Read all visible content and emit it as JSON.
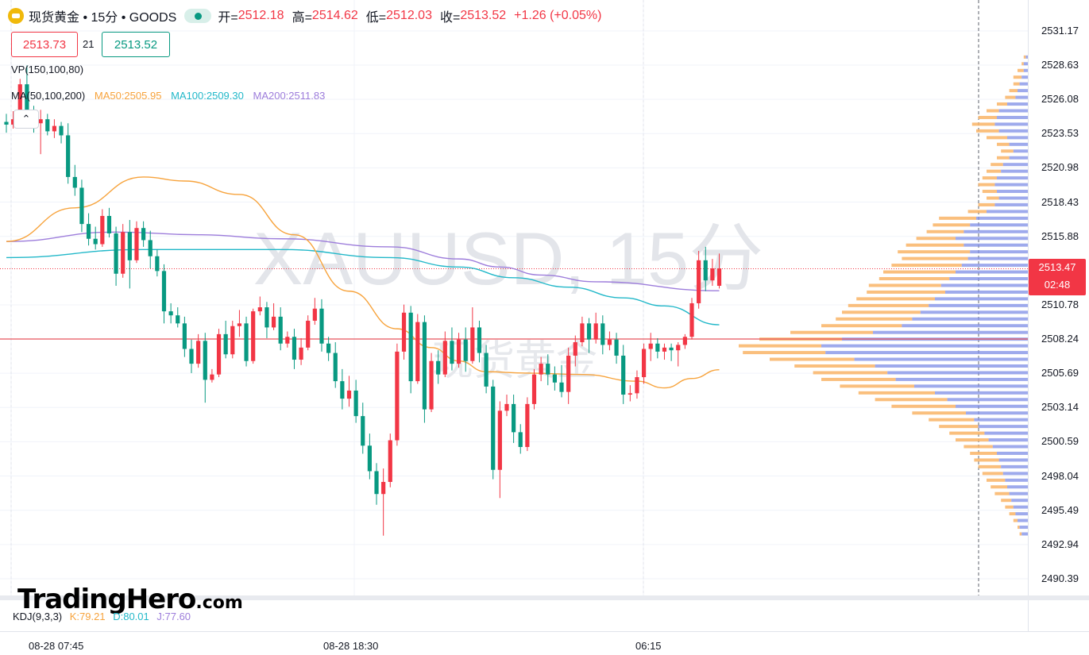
{
  "header": {
    "symbol_text": "现货黄金 • 15分 • GOODS",
    "open_key": "开=",
    "open_val": "2512.18",
    "high_key": "高=",
    "high_val": "2514.62",
    "low_key": "低=",
    "low_val": "2512.03",
    "close_key": "收=",
    "close_val": "2513.52",
    "change": "+1.26 (+0.05%)"
  },
  "quote": {
    "ask": "2513.73",
    "spread": "21",
    "bid": "2513.52"
  },
  "indicators": {
    "vp_label": "VP(150,100,80)",
    "ma_label": "MA(50,100,200)",
    "ma50": "MA50:2505.95",
    "ma100": "MA100:2509.30",
    "ma200": "MA200:2511.83",
    "collapse_glyph": "⌃"
  },
  "kdj": {
    "label": "KDJ(9,3,3)",
    "k": "K:79.21",
    "d": "D:80.01",
    "j": "J:77.60"
  },
  "watermark": {
    "line1": "XAUUSD, 15分",
    "line2": "现货黄金"
  },
  "brand": {
    "name": "TradingHero",
    "suffix": ".com"
  },
  "price_axis": {
    "ticks": [
      "2531.17",
      "2528.63",
      "2526.08",
      "2523.53",
      "2520.98",
      "2518.43",
      "2515.88",
      "2510.78",
      "2508.24",
      "2505.69",
      "2503.14",
      "2500.59",
      "2498.04",
      "2495.49",
      "2492.94",
      "2490.39"
    ],
    "last_price": "2513.47",
    "countdown": "02:48"
  },
  "time_axis": {
    "ticks": [
      "08-28 07:45",
      "08-28 18:30",
      "06:15"
    ]
  },
  "colors": {
    "up": "#f23645",
    "down": "#089981",
    "ma50": "#f7a33c",
    "ma100": "#22b8c9",
    "ma200": "#9d7ddb",
    "vp_up": "#f9b466",
    "vp_down": "#7e8ee6"
  },
  "chart_data": {
    "type": "candlestick",
    "timeframe": "15分",
    "symbol": "XAUUSD",
    "y_range": [
      2489.0,
      2533.0
    ],
    "horizontal_line": 2508.24,
    "candles": [
      [
        2524.4,
        2525.0,
        2523.6,
        2524.2
      ],
      [
        2524.2,
        2525.2,
        2523.9,
        2524.6
      ],
      [
        2524.6,
        2527.6,
        2524.4,
        2527.2
      ],
      [
        2527.2,
        2528.6,
        2524.0,
        2524.9
      ],
      [
        2524.9,
        2525.6,
        2523.6,
        2524.3
      ],
      [
        2524.3,
        2525.3,
        2522.0,
        2524.6
      ],
      [
        2524.6,
        2525.0,
        2523.4,
        2523.7
      ],
      [
        2523.7,
        2524.6,
        2523.2,
        2524.1
      ],
      [
        2524.1,
        2524.4,
        2522.8,
        2523.4
      ],
      [
        2523.4,
        2524.3,
        2519.8,
        2520.3
      ],
      [
        2520.3,
        2521.2,
        2518.9,
        2519.5
      ],
      [
        2519.5,
        2520.1,
        2516.2,
        2516.8
      ],
      [
        2516.8,
        2517.6,
        2515.2,
        2515.7
      ],
      [
        2515.7,
        2516.6,
        2514.9,
        2515.3
      ],
      [
        2515.3,
        2517.9,
        2515.1,
        2517.4
      ],
      [
        2517.4,
        2518.0,
        2515.8,
        2516.1
      ],
      [
        2516.1,
        2516.6,
        2512.2,
        2513.1
      ],
      [
        2513.1,
        2516.8,
        2512.8,
        2516.2
      ],
      [
        2516.2,
        2517.1,
        2512.0,
        2514.1
      ],
      [
        2514.1,
        2517.0,
        2513.9,
        2516.5
      ],
      [
        2516.5,
        2517.0,
        2515.1,
        2515.6
      ],
      [
        2515.6,
        2516.3,
        2513.5,
        2514.4
      ],
      [
        2514.4,
        2514.9,
        2512.9,
        2513.3
      ],
      [
        2513.3,
        2513.8,
        2509.4,
        2510.3
      ],
      [
        2510.3,
        2510.9,
        2509.4,
        2510.0
      ],
      [
        2510.0,
        2510.6,
        2509.1,
        2509.4
      ],
      [
        2509.4,
        2509.9,
        2506.9,
        2507.5
      ],
      [
        2507.5,
        2508.2,
        2505.7,
        2506.4
      ],
      [
        2506.4,
        2508.6,
        2506.1,
        2508.1
      ],
      [
        2508.1,
        2508.7,
        2503.5,
        2505.2
      ],
      [
        2505.2,
        2506.0,
        2505.0,
        2505.6
      ],
      [
        2505.6,
        2509.0,
        2505.4,
        2508.6
      ],
      [
        2508.6,
        2509.6,
        2506.8,
        2507.1
      ],
      [
        2507.1,
        2509.6,
        2506.8,
        2509.2
      ],
      [
        2509.2,
        2510.4,
        2508.4,
        2509.4
      ],
      [
        2509.4,
        2509.9,
        2506.2,
        2506.6
      ],
      [
        2506.6,
        2510.5,
        2506.4,
        2510.3
      ],
      [
        2510.3,
        2511.4,
        2510.0,
        2510.6
      ],
      [
        2510.6,
        2511.0,
        2508.3,
        2509.1
      ],
      [
        2509.1,
        2510.9,
        2508.9,
        2509.9
      ],
      [
        2509.9,
        2510.6,
        2507.4,
        2507.9
      ],
      [
        2507.9,
        2508.8,
        2507.6,
        2508.4
      ],
      [
        2508.4,
        2509.0,
        2506.0,
        2506.7
      ],
      [
        2506.7,
        2508.3,
        2506.3,
        2507.6
      ],
      [
        2507.6,
        2510.0,
        2507.4,
        2509.6
      ],
      [
        2509.6,
        2511.3,
        2509.3,
        2510.5
      ],
      [
        2510.5,
        2511.2,
        2507.3,
        2507.9
      ],
      [
        2507.9,
        2508.4,
        2506.6,
        2507.2
      ],
      [
        2507.2,
        2508.0,
        2504.6,
        2505.1
      ],
      [
        2505.1,
        2506.0,
        2503.0,
        2503.8
      ],
      [
        2503.8,
        2505.5,
        2503.2,
        2504.4
      ],
      [
        2504.4,
        2505.2,
        2502.0,
        2502.5
      ],
      [
        2502.5,
        2503.5,
        2499.7,
        2500.3
      ],
      [
        2500.3,
        2501.2,
        2497.8,
        2498.4
      ],
      [
        2498.4,
        2499.0,
        2495.9,
        2496.7
      ],
      [
        2496.7,
        2498.6,
        2493.6,
        2497.6
      ],
      [
        2497.6,
        2501.2,
        2497.2,
        2500.7
      ],
      [
        2500.7,
        2507.9,
        2500.3,
        2507.3
      ],
      [
        2507.3,
        2510.8,
        2506.7,
        2510.2
      ],
      [
        2510.2,
        2510.7,
        2504.2,
        2505.1
      ],
      [
        2505.1,
        2510.1,
        2504.9,
        2509.5
      ],
      [
        2509.5,
        2510.0,
        2502.0,
        2503.0
      ],
      [
        2503.0,
        2507.2,
        2502.8,
        2506.6
      ],
      [
        2506.6,
        2507.4,
        2504.9,
        2505.6
      ],
      [
        2505.6,
        2508.8,
        2505.4,
        2508.1
      ],
      [
        2508.1,
        2509.1,
        2505.9,
        2506.4
      ],
      [
        2506.4,
        2508.7,
        2506.1,
        2508.2
      ],
      [
        2508.2,
        2509.1,
        2505.8,
        2506.6
      ],
      [
        2506.6,
        2510.6,
        2506.4,
        2509.1
      ],
      [
        2509.1,
        2509.6,
        2506.5,
        2507.2
      ],
      [
        2507.2,
        2507.8,
        2504.2,
        2504.7
      ],
      [
        2504.7,
        2505.2,
        2497.8,
        2498.5
      ],
      [
        2498.5,
        2503.6,
        2496.4,
        2502.9
      ],
      [
        2502.9,
        2504.1,
        2502.5,
        2503.4
      ],
      [
        2503.4,
        2504.1,
        2500.5,
        2501.3
      ],
      [
        2501.3,
        2501.9,
        2499.7,
        2500.2
      ],
      [
        2500.2,
        2503.9,
        2499.9,
        2503.4
      ],
      [
        2503.4,
        2506.0,
        2503.0,
        2505.6
      ],
      [
        2505.6,
        2506.9,
        2505.1,
        2506.4
      ],
      [
        2506.4,
        2507.1,
        2504.8,
        2505.6
      ],
      [
        2505.6,
        2506.2,
        2504.4,
        2505.0
      ],
      [
        2505.0,
        2506.3,
        2503.9,
        2504.3
      ],
      [
        2504.3,
        2507.6,
        2503.4,
        2507.0
      ],
      [
        2507.0,
        2508.5,
        2506.2,
        2508.0
      ],
      [
        2508.0,
        2509.9,
        2507.7,
        2509.4
      ],
      [
        2509.4,
        2509.8,
        2507.2,
        2508.2
      ],
      [
        2508.2,
        2510.2,
        2507.9,
        2509.4
      ],
      [
        2509.4,
        2510.0,
        2507.1,
        2507.8
      ],
      [
        2507.8,
        2508.8,
        2507.4,
        2508.2
      ],
      [
        2508.2,
        2508.7,
        2506.4,
        2507.0
      ],
      [
        2507.0,
        2507.8,
        2503.4,
        2504.1
      ],
      [
        2504.1,
        2504.8,
        2503.6,
        2504.2
      ],
      [
        2504.2,
        2505.9,
        2503.8,
        2505.4
      ],
      [
        2505.4,
        2507.9,
        2504.9,
        2507.5
      ],
      [
        2507.5,
        2508.7,
        2506.6,
        2507.9
      ],
      [
        2507.9,
        2508.3,
        2506.8,
        2507.3
      ],
      [
        2507.3,
        2507.9,
        2506.7,
        2507.6
      ],
      [
        2507.6,
        2507.9,
        2506.6,
        2507.4
      ],
      [
        2507.4,
        2508.0,
        2506.2,
        2507.8
      ],
      [
        2507.8,
        2508.6,
        2507.5,
        2508.4
      ],
      [
        2508.4,
        2511.3,
        2508.2,
        2510.9
      ],
      [
        2510.9,
        2514.8,
        2510.5,
        2514.1
      ],
      [
        2514.1,
        2515.1,
        2511.8,
        2512.6
      ],
      [
        2512.6,
        2514.2,
        2512.2,
        2513.5
      ],
      [
        2512.2,
        2514.6,
        2512.0,
        2513.5
      ]
    ],
    "ma50": [
      [
        0,
        2515.5
      ],
      [
        10,
        2518.0
      ],
      [
        20,
        2520.3
      ],
      [
        26,
        2520.0
      ],
      [
        34,
        2519.0
      ],
      [
        42,
        2516.0
      ],
      [
        50,
        2511.8
      ],
      [
        57,
        2509.0
      ],
      [
        62,
        2507.6
      ],
      [
        66,
        2506.6
      ],
      [
        70,
        2505.8
      ],
      [
        76,
        2505.7
      ],
      [
        84,
        2505.6
      ],
      [
        92,
        2505.1
      ],
      [
        96,
        2504.6
      ],
      [
        100,
        2505.3
      ],
      [
        104,
        2505.95
      ]
    ],
    "ma100": [
      [
        0,
        2514.3
      ],
      [
        20,
        2514.9
      ],
      [
        40,
        2514.9
      ],
      [
        56,
        2514.3
      ],
      [
        66,
        2513.6
      ],
      [
        74,
        2512.8
      ],
      [
        82,
        2512.1
      ],
      [
        90,
        2511.3
      ],
      [
        96,
        2510.7
      ],
      [
        104,
        2509.3
      ]
    ],
    "ma200": [
      [
        0,
        2515.5
      ],
      [
        16,
        2516.2
      ],
      [
        28,
        2516.0
      ],
      [
        40,
        2515.7
      ],
      [
        56,
        2515.1
      ],
      [
        66,
        2514.2
      ],
      [
        72,
        2513.6
      ],
      [
        78,
        2513.0
      ],
      [
        86,
        2512.5
      ],
      [
        104,
        2511.83
      ]
    ],
    "volume_profile": {
      "step": 0.5,
      "rows": [
        [
          2529.2,
          4,
          2
        ],
        [
          2528.7,
          6,
          4
        ],
        [
          2528.2,
          10,
          4
        ],
        [
          2527.7,
          14,
          6
        ],
        [
          2527.2,
          14,
          8
        ],
        [
          2526.7,
          18,
          10
        ],
        [
          2526.2,
          22,
          12
        ],
        [
          2525.7,
          30,
          20
        ],
        [
          2525.2,
          40,
          28
        ],
        [
          2524.7,
          48,
          30
        ],
        [
          2524.2,
          54,
          32
        ],
        [
          2523.7,
          50,
          28
        ],
        [
          2523.2,
          40,
          20
        ],
        [
          2522.7,
          30,
          18
        ],
        [
          2522.2,
          26,
          14
        ],
        [
          2521.7,
          30,
          18
        ],
        [
          2521.2,
          36,
          24
        ],
        [
          2520.7,
          40,
          26
        ],
        [
          2520.2,
          44,
          30
        ],
        [
          2519.7,
          48,
          32
        ],
        [
          2519.2,
          44,
          30
        ],
        [
          2518.7,
          40,
          28
        ],
        [
          2518.2,
          48,
          32
        ],
        [
          2517.7,
          58,
          40
        ],
        [
          2517.2,
          86,
          50
        ],
        [
          2516.7,
          92,
          56
        ],
        [
          2516.2,
          98,
          62
        ],
        [
          2515.7,
          108,
          70
        ],
        [
          2515.2,
          118,
          62
        ],
        [
          2514.7,
          126,
          56
        ],
        [
          2514.2,
          122,
          58
        ],
        [
          2513.7,
          132,
          64
        ],
        [
          2513.2,
          140,
          70
        ],
        [
          2512.7,
          144,
          76
        ],
        [
          2512.2,
          154,
          84
        ],
        [
          2511.7,
          156,
          80
        ],
        [
          2511.2,
          166,
          90
        ],
        [
          2510.7,
          174,
          96
        ],
        [
          2510.2,
          180,
          104
        ],
        [
          2509.7,
          186,
          112
        ],
        [
          2509.2,
          200,
          122
        ],
        [
          2508.7,
          230,
          150
        ],
        [
          2508.2,
          260,
          180
        ],
        [
          2507.7,
          280,
          200
        ],
        [
          2507.2,
          276,
          196
        ],
        [
          2506.7,
          250,
          168
        ],
        [
          2506.2,
          226,
          148
        ],
        [
          2505.7,
          208,
          136
        ],
        [
          2505.2,
          200,
          128
        ],
        [
          2504.7,
          182,
          110
        ],
        [
          2504.2,
          164,
          90
        ],
        [
          2503.7,
          148,
          78
        ],
        [
          2503.2,
          132,
          70
        ],
        [
          2502.7,
          112,
          60
        ],
        [
          2502.2,
          96,
          52
        ],
        [
          2501.7,
          86,
          48
        ],
        [
          2501.2,
          76,
          42
        ],
        [
          2500.7,
          70,
          38
        ],
        [
          2500.2,
          62,
          34
        ],
        [
          2499.7,
          56,
          30
        ],
        [
          2499.2,
          52,
          28
        ],
        [
          2498.7,
          48,
          26
        ],
        [
          2498.2,
          44,
          24
        ],
        [
          2497.7,
          40,
          22
        ],
        [
          2497.2,
          36,
          20
        ],
        [
          2496.7,
          32,
          18
        ],
        [
          2496.2,
          26,
          16
        ],
        [
          2495.7,
          22,
          14
        ],
        [
          2495.2,
          18,
          12
        ],
        [
          2494.7,
          14,
          10
        ],
        [
          2494.2,
          10,
          8
        ],
        [
          2493.7,
          8,
          6
        ]
      ]
    }
  }
}
